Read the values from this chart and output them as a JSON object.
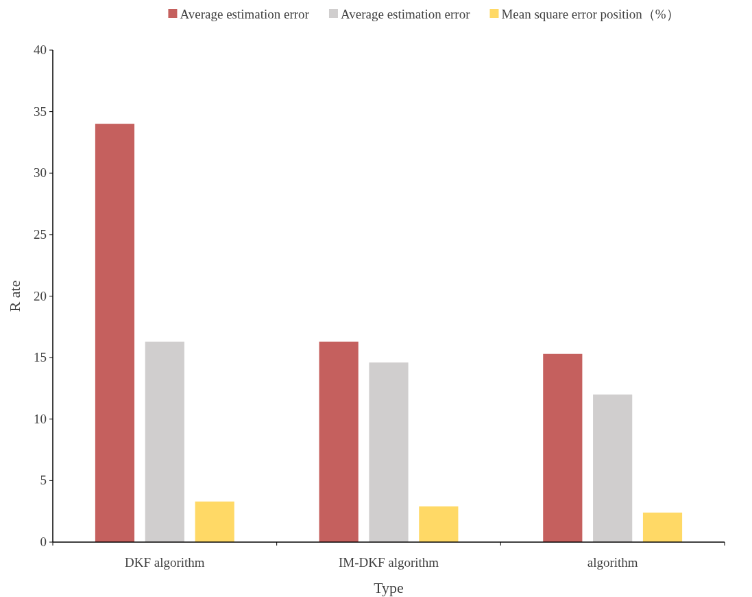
{
  "chart_data": {
    "type": "bar",
    "xlabel": "Type",
    "ylabel": "R ate",
    "categories": [
      "DKF algorithm",
      "IM-DKF algorithm",
      "algorithm"
    ],
    "series": [
      {
        "name": "Average estimation error",
        "color": "#c5605e",
        "values": [
          34,
          16.3,
          15.3
        ]
      },
      {
        "name": "Average estimation error",
        "color": "#d0cece",
        "values": [
          16.3,
          14.6,
          12
        ]
      },
      {
        "name": "Mean square error position（%）",
        "color": "#ffd966",
        "values": [
          3.3,
          2.9,
          2.4
        ]
      }
    ],
    "ylim": [
      0,
      40
    ],
    "yticks": [
      0,
      5,
      10,
      15,
      20,
      25,
      30,
      35,
      40
    ],
    "grid": false,
    "legend": "top"
  }
}
